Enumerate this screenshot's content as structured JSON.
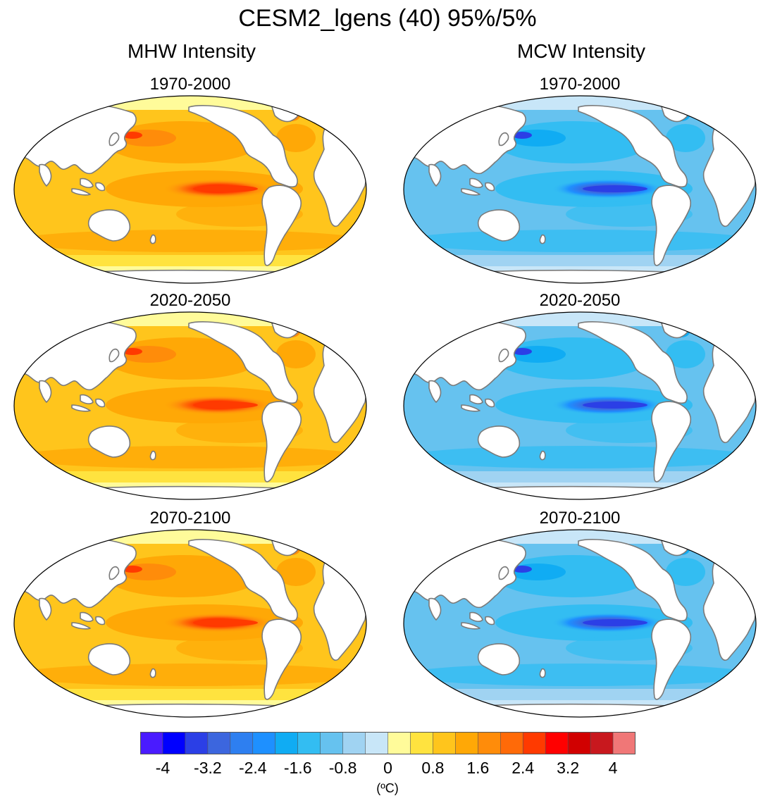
{
  "figure": {
    "title": "CESM2_lgens (40) 95%/5%",
    "columns": [
      {
        "id": "mhw",
        "title": "MHW Intensity",
        "palette": "warm"
      },
      {
        "id": "mcw",
        "title": "MCW Intensity",
        "palette": "cool"
      }
    ],
    "periods": [
      "1970-2000",
      "2020-2050",
      "2070-2100"
    ],
    "projection": "Robinson",
    "central_longitude": -160
  },
  "colorbar": {
    "colors": [
      "#4a1bff",
      "#0000ff",
      "#2b3fe6",
      "#3c66de",
      "#2e7ff0",
      "#1e90ff",
      "#10acf3",
      "#33bdf2",
      "#66c2ef",
      "#a0d3f2",
      "#c8e6f8",
      "#fffb9a",
      "#ffe33f",
      "#ffc51c",
      "#ffa806",
      "#ff8c0a",
      "#ff6a08",
      "#ff3a00",
      "#ff0000",
      "#d10000",
      "#c8181e",
      "#f07777"
    ],
    "tick_labels": [
      "-4",
      "-3.2",
      "-2.4",
      "-1.6",
      "-0.8",
      "0",
      "0.8",
      "1.6",
      "2.4",
      "3.2",
      "4"
    ],
    "units": "(ºC)"
  },
  "chart_data": {
    "type": "heatmap",
    "title": "CESM2_lgens (40) 95%/5%",
    "variables": [
      "MHW Intensity",
      "MCW Intensity"
    ],
    "periods": [
      "1970-2000",
      "2020-2050",
      "2070-2100"
    ],
    "color_levels": [
      -4,
      -3.6,
      -3.2,
      -2.8,
      -2.4,
      -2.0,
      -1.6,
      -1.2,
      -0.8,
      -0.4,
      0,
      0.4,
      0.8,
      1.2,
      1.6,
      2.0,
      2.4,
      2.8,
      3.2,
      3.6,
      4
    ],
    "units": "(ºC)",
    "approximate_values": {
      "MHW Intensity": {
        "1970-2000": {
          "background_ocean": 1.4,
          "north_pacific": 1.8,
          "kuroshio_extension": 2.6,
          "eastern_equatorial_pacific_max": 3.0
        },
        "2020-2050": {
          "background_ocean": 1.4,
          "north_pacific": 1.8,
          "kuroshio_extension": 2.6,
          "eastern_equatorial_pacific_max": 3.1
        },
        "2070-2100": {
          "background_ocean": 1.5,
          "north_pacific": 1.9,
          "kuroshio_extension": 2.5,
          "eastern_equatorial_pacific_max": 2.9
        }
      },
      "MCW Intensity": {
        "1970-2000": {
          "background_ocean": -1.4,
          "north_pacific": -1.8,
          "kuroshio_extension": -2.6,
          "eastern_equatorial_pacific_min": -3.0
        },
        "2020-2050": {
          "background_ocean": -1.4,
          "north_pacific": -1.8,
          "kuroshio_extension": -2.6,
          "eastern_equatorial_pacific_min": -3.0
        },
        "2070-2100": {
          "background_ocean": -1.4,
          "north_pacific": -1.9,
          "kuroshio_extension": -2.6,
          "eastern_equatorial_pacific_min": -3.1
        }
      }
    }
  }
}
